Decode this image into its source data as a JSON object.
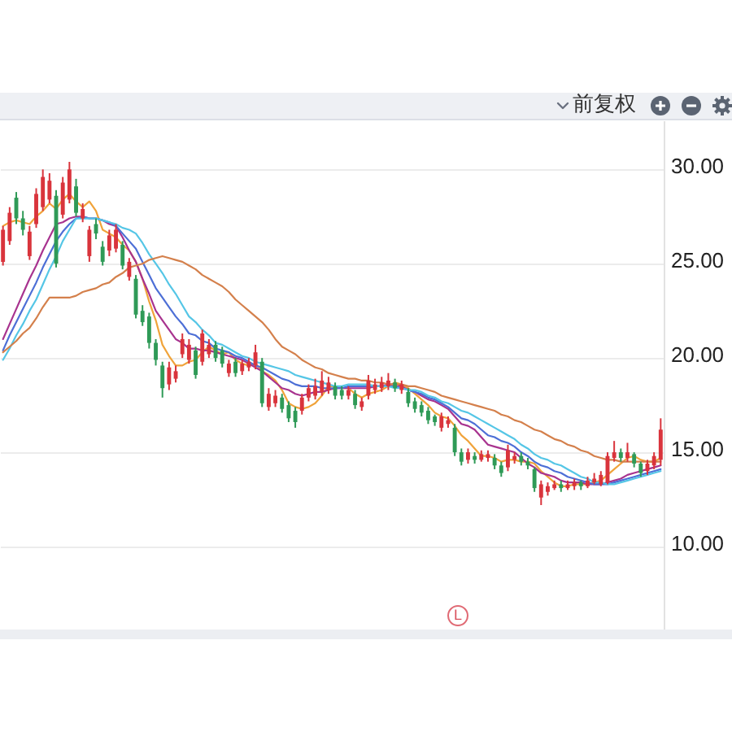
{
  "chart_data": {
    "type": "candlestick",
    "categories": [
      null,
      null,
      null,
      null,
      null,
      null,
      null,
      null,
      null,
      null,
      null,
      null,
      null,
      null,
      null,
      null,
      null,
      null,
      null,
      null,
      null,
      null,
      null,
      null,
      null,
      null,
      null,
      null,
      null,
      null,
      null,
      null,
      null,
      null,
      null,
      null,
      null,
      null,
      null,
      null,
      null,
      null,
      null,
      null,
      null,
      null,
      null,
      null,
      null,
      null,
      null,
      null,
      null,
      null,
      null,
      null,
      null,
      null,
      null,
      null,
      null,
      null,
      null,
      null,
      null,
      null,
      null,
      null,
      null,
      null,
      null,
      null,
      null,
      null,
      null,
      null,
      null,
      null,
      null,
      null,
      null,
      null,
      null,
      null,
      null,
      null,
      null,
      null,
      null,
      null,
      null,
      null,
      null,
      null,
      null,
      null,
      null,
      null,
      null,
      null
    ],
    "ohlc": [
      [
        25.1,
        27.0,
        24.9,
        26.8
      ],
      [
        26.2,
        28.0,
        26.0,
        27.7
      ],
      [
        28.5,
        28.8,
        27.1,
        27.4
      ],
      [
        27.4,
        27.8,
        26.5,
        26.8
      ],
      [
        25.4,
        27.0,
        25.2,
        26.7
      ],
      [
        27.1,
        29.0,
        26.9,
        28.7
      ],
      [
        28.0,
        30.0,
        27.8,
        29.6
      ],
      [
        28.4,
        29.8,
        28.2,
        29.4
      ],
      [
        28.6,
        28.9,
        24.8,
        25.0
      ],
      [
        27.6,
        29.6,
        27.4,
        29.3
      ],
      [
        28.4,
        30.4,
        28.2,
        30.0
      ],
      [
        29.1,
        29.5,
        27.5,
        27.7
      ],
      [
        27.4,
        28.2,
        27.2,
        27.9
      ],
      [
        25.4,
        27.0,
        25.1,
        26.8
      ],
      [
        27.1,
        27.4,
        26.3,
        26.6
      ],
      [
        25.9,
        26.2,
        24.9,
        25.1
      ],
      [
        25.7,
        26.8,
        25.4,
        26.5
      ],
      [
        25.8,
        27.1,
        25.6,
        26.8
      ],
      [
        26.0,
        26.2,
        24.7,
        24.9
      ],
      [
        24.3,
        25.3,
        24.1,
        25.1
      ],
      [
        24.2,
        24.4,
        22.1,
        22.3
      ],
      [
        22.5,
        22.8,
        21.7,
        21.9
      ],
      [
        22.2,
        22.4,
        20.5,
        20.8
      ],
      [
        20.8,
        21.0,
        19.6,
        19.9
      ],
      [
        19.6,
        19.8,
        17.9,
        18.4
      ],
      [
        18.6,
        19.8,
        18.3,
        19.5
      ],
      [
        18.9,
        19.6,
        18.7,
        19.3
      ],
      [
        20.2,
        21.3,
        20.0,
        21.0
      ],
      [
        19.9,
        21.0,
        19.7,
        20.7
      ],
      [
        20.4,
        20.6,
        18.9,
        19.1
      ],
      [
        19.8,
        21.5,
        19.6,
        21.3
      ],
      [
        20.2,
        21.0,
        20.0,
        20.7
      ],
      [
        20.7,
        20.9,
        19.8,
        20.0
      ],
      [
        20.4,
        20.6,
        19.5,
        19.7
      ],
      [
        19.2,
        19.9,
        19.0,
        19.7
      ],
      [
        19.8,
        20.0,
        19.0,
        19.2
      ],
      [
        19.3,
        19.9,
        19.1,
        19.7
      ],
      [
        19.5,
        20.0,
        19.3,
        19.8
      ],
      [
        19.6,
        20.7,
        19.4,
        20.3
      ],
      [
        19.8,
        20.0,
        17.4,
        17.6
      ],
      [
        17.4,
        18.4,
        17.2,
        18.1
      ],
      [
        17.6,
        18.3,
        17.4,
        18.0
      ],
      [
        17.9,
        18.1,
        17.1,
        17.3
      ],
      [
        17.5,
        17.7,
        16.6,
        16.8
      ],
      [
        17.2,
        17.4,
        16.3,
        16.6
      ],
      [
        17.2,
        18.1,
        17.0,
        17.9
      ],
      [
        17.9,
        18.6,
        17.7,
        18.4
      ],
      [
        18.0,
        18.9,
        17.8,
        18.5
      ],
      [
        18.2,
        19.3,
        18.0,
        18.8
      ],
      [
        18.3,
        19.0,
        18.1,
        18.7
      ],
      [
        18.5,
        18.7,
        17.8,
        18.0
      ],
      [
        18.3,
        18.5,
        17.8,
        18.0
      ],
      [
        18.0,
        18.5,
        17.8,
        18.3
      ],
      [
        18.1,
        18.3,
        17.3,
        17.5
      ],
      [
        17.4,
        17.9,
        17.2,
        17.7
      ],
      [
        18.0,
        19.1,
        17.8,
        18.8
      ],
      [
        18.3,
        18.9,
        18.1,
        18.6
      ],
      [
        18.4,
        19.0,
        18.2,
        18.7
      ],
      [
        18.5,
        19.2,
        18.3,
        18.8
      ],
      [
        18.7,
        18.9,
        18.2,
        18.4
      ],
      [
        18.3,
        18.8,
        18.1,
        18.6
      ],
      [
        18.2,
        18.4,
        17.4,
        17.6
      ],
      [
        17.7,
        17.9,
        17.1,
        17.3
      ],
      [
        17.5,
        17.7,
        16.9,
        17.1
      ],
      [
        17.2,
        17.4,
        16.5,
        16.7
      ],
      [
        16.9,
        17.0,
        16.4,
        16.6
      ],
      [
        16.3,
        17.1,
        16.1,
        16.9
      ],
      [
        16.5,
        16.9,
        16.3,
        16.7
      ],
      [
        16.3,
        16.5,
        14.8,
        15.0
      ],
      [
        15.0,
        15.2,
        14.3,
        14.5
      ],
      [
        14.6,
        15.2,
        14.4,
        15.0
      ],
      [
        14.8,
        15.0,
        14.4,
        14.6
      ],
      [
        14.6,
        15.1,
        14.5,
        14.9
      ],
      [
        14.7,
        15.1,
        14.5,
        14.9
      ],
      [
        14.7,
        14.9,
        14.1,
        14.3
      ],
      [
        14.3,
        14.5,
        13.7,
        13.9
      ],
      [
        14.2,
        15.4,
        14.0,
        15.1
      ],
      [
        14.6,
        15.0,
        14.4,
        14.8
      ],
      [
        14.8,
        15.0,
        14.3,
        14.5
      ],
      [
        14.5,
        14.7,
        14.1,
        14.3
      ],
      [
        14.1,
        14.2,
        12.9,
        13.1
      ],
      [
        12.6,
        13.5,
        12.2,
        13.3
      ],
      [
        12.9,
        13.4,
        12.7,
        13.2
      ],
      [
        13.1,
        13.5,
        13.0,
        13.3
      ],
      [
        13.3,
        13.5,
        12.9,
        13.1
      ],
      [
        13.1,
        13.5,
        13.0,
        13.3
      ],
      [
        13.2,
        13.6,
        13.0,
        13.4
      ],
      [
        13.4,
        13.5,
        13.0,
        13.2
      ],
      [
        13.2,
        13.7,
        13.1,
        13.5
      ],
      [
        13.4,
        13.9,
        13.3,
        13.6
      ],
      [
        13.3,
        14.0,
        13.2,
        13.8
      ],
      [
        13.4,
        15.0,
        13.3,
        14.8
      ],
      [
        14.7,
        15.6,
        14.5,
        15.0
      ],
      [
        15.0,
        15.2,
        14.5,
        14.7
      ],
      [
        14.7,
        15.5,
        14.5,
        15.0
      ],
      [
        14.9,
        15.0,
        14.2,
        14.4
      ],
      [
        14.4,
        14.5,
        13.7,
        13.9
      ],
      [
        14.0,
        14.6,
        13.8,
        14.4
      ],
      [
        14.3,
        15.0,
        14.1,
        14.8
      ],
      [
        14.6,
        16.8,
        14.3,
        16.2
      ]
    ],
    "colors": [
      "#d9343c",
      "#d9343c",
      "#2f9a57",
      "#2f9a57",
      "#d9343c",
      "#d9343c",
      "#d9343c",
      "#d9343c",
      "#2f9a57",
      "#d9343c",
      "#d9343c",
      "#2f9a57",
      "#d9343c",
      "#d9343c",
      "#2f9a57",
      "#2f9a57",
      "#d9343c",
      "#d9343c",
      "#2f9a57",
      "#d9343c",
      "#2f9a57",
      "#2f9a57",
      "#2f9a57",
      "#2f9a57",
      "#2f9a57",
      "#d9343c",
      "#d9343c",
      "#d9343c",
      "#d9343c",
      "#2f9a57",
      "#d9343c",
      "#d9343c",
      "#2f9a57",
      "#2f9a57",
      "#d9343c",
      "#2f9a57",
      "#d9343c",
      "#d9343c",
      "#d9343c",
      "#2f9a57",
      "#d9343c",
      "#d9343c",
      "#2f9a57",
      "#2f9a57",
      "#2f9a57",
      "#d9343c",
      "#d9343c",
      "#d9343c",
      "#d9343c",
      "#d9343c",
      "#2f9a57",
      "#2f9a57",
      "#d9343c",
      "#2f9a57",
      "#d9343c",
      "#d9343c",
      "#d9343c",
      "#d9343c",
      "#d9343c",
      "#2f9a57",
      "#d9343c",
      "#2f9a57",
      "#2f9a57",
      "#2f9a57",
      "#2f9a57",
      "#2f9a57",
      "#d9343c",
      "#d9343c",
      "#2f9a57",
      "#2f9a57",
      "#d9343c",
      "#2f9a57",
      "#d9343c",
      "#d9343c",
      "#2f9a57",
      "#2f9a57",
      "#d9343c",
      "#d9343c",
      "#2f9a57",
      "#2f9a57",
      "#2f9a57",
      "#d9343c",
      "#d9343c",
      "#d9343c",
      "#2f9a57",
      "#d9343c",
      "#d9343c",
      "#2f9a57",
      "#d9343c",
      "#d9343c",
      "#d9343c",
      "#d9343c",
      "#d9343c",
      "#2f9a57",
      "#d9343c",
      "#2f9a57",
      "#2f9a57",
      "#d9343c",
      "#d9343c",
      "#d9343c"
    ],
    "series": [
      {
        "type": "line",
        "color": "#f0a33a",
        "values": [
          27.0,
          27.2,
          27.3,
          27.2,
          27.1,
          27.5,
          27.8,
          28.2,
          27.9,
          28.4,
          28.7,
          28.3,
          28.0,
          28.3,
          27.8,
          26.8,
          26.6,
          26.4,
          26.0,
          25.7,
          25.1,
          24.2,
          23.0,
          22.0,
          20.7,
          20.1,
          19.6,
          19.6,
          19.8,
          19.9,
          20.3,
          20.6,
          20.4,
          20.2,
          20.3,
          19.9,
          19.7,
          19.6,
          19.7,
          19.3,
          19.1,
          18.8,
          18.3,
          17.6,
          17.4,
          17.3,
          17.4,
          17.6,
          18.0,
          18.5,
          18.5,
          18.4,
          18.4,
          18.1,
          17.9,
          18.1,
          18.2,
          18.3,
          18.5,
          18.7,
          18.6,
          18.4,
          18.1,
          17.8,
          17.5,
          17.1,
          16.9,
          16.8,
          16.4,
          15.9,
          15.6,
          15.2,
          14.8,
          14.8,
          14.7,
          14.5,
          14.6,
          14.6,
          14.5,
          14.5,
          14.4,
          14.0,
          13.7,
          13.4,
          13.2,
          13.2,
          13.3,
          13.3,
          13.3,
          13.4,
          13.5,
          13.8,
          14.1,
          14.4,
          14.7,
          14.8,
          14.6,
          14.5,
          14.5,
          14.7
        ]
      },
      {
        "type": "line",
        "color": "#a8338f",
        "values": [
          21.0,
          21.8,
          22.6,
          23.4,
          24.2,
          24.9,
          25.7,
          26.4,
          27.1,
          27.2,
          27.4,
          27.5,
          27.5,
          27.4,
          27.4,
          27.3,
          27.1,
          27.0,
          26.4,
          25.7,
          25.1,
          24.2,
          23.4,
          22.5,
          22.0,
          21.5,
          21.0,
          20.8,
          20.5,
          20.5,
          20.4,
          20.4,
          20.3,
          20.2,
          20.1,
          20.0,
          19.9,
          19.7,
          19.5,
          19.3,
          19.0,
          18.7,
          18.4,
          18.3,
          18.1,
          18.0,
          18.1,
          18.2,
          18.2,
          18.3,
          18.4,
          18.4,
          18.4,
          18.4,
          18.4,
          18.4,
          18.5,
          18.5,
          18.6,
          18.6,
          18.5,
          18.3,
          18.2,
          18.0,
          17.8,
          17.7,
          17.5,
          17.3,
          16.9,
          16.5,
          16.4,
          16.2,
          15.8,
          15.4,
          15.3,
          15.2,
          15.1,
          15.0,
          14.7,
          14.4,
          14.2,
          13.9,
          13.8,
          13.7,
          13.5,
          13.4,
          13.4,
          13.4,
          13.3,
          13.3,
          13.3,
          13.4,
          13.5,
          13.6,
          13.8,
          13.9,
          14.0,
          14.1,
          14.2,
          14.3
        ]
      },
      {
        "type": "line",
        "color": "#4d6fd6",
        "values": [
          20.4,
          21.2,
          21.9,
          22.6,
          23.3,
          24.0,
          24.8,
          25.5,
          26.2,
          26.7,
          27.1,
          27.4,
          27.5,
          27.4,
          27.4,
          27.3,
          27.2,
          27.0,
          26.6,
          26.2,
          25.8,
          25.1,
          24.4,
          23.7,
          23.2,
          22.7,
          22.2,
          21.8,
          21.3,
          21.2,
          20.9,
          20.8,
          20.5,
          20.4,
          20.3,
          20.1,
          20.0,
          19.8,
          19.6,
          19.5,
          19.3,
          19.1,
          18.9,
          18.8,
          18.6,
          18.5,
          18.5,
          18.5,
          18.4,
          18.4,
          18.4,
          18.4,
          18.5,
          18.5,
          18.5,
          18.5,
          18.5,
          18.5,
          18.5,
          18.5,
          18.4,
          18.3,
          18.2,
          18.1,
          17.9,
          17.8,
          17.6,
          17.4,
          17.1,
          16.8,
          16.7,
          16.5,
          16.2,
          15.9,
          15.8,
          15.6,
          15.5,
          15.3,
          15.0,
          14.8,
          14.5,
          14.3,
          14.2,
          14.0,
          13.9,
          13.7,
          13.6,
          13.5,
          13.4,
          13.3,
          13.3,
          13.3,
          13.4,
          13.5,
          13.6,
          13.7,
          13.8,
          13.9,
          14.0,
          14.1
        ]
      },
      {
        "type": "line",
        "color": "#55c6e6",
        "values": [
          19.9,
          20.5,
          21.2,
          21.8,
          22.5,
          23.1,
          23.9,
          24.7,
          25.4,
          26.2,
          26.8,
          27.4,
          27.4,
          27.4,
          27.4,
          27.3,
          27.2,
          27.1,
          26.9,
          26.8,
          26.6,
          26.1,
          25.5,
          25.0,
          24.5,
          23.9,
          23.4,
          22.8,
          22.2,
          21.9,
          21.5,
          21.2,
          20.8,
          20.7,
          20.5,
          20.3,
          20.1,
          20.0,
          19.8,
          19.7,
          19.6,
          19.5,
          19.4,
          19.3,
          19.1,
          19.0,
          18.9,
          18.8,
          18.7,
          18.6,
          18.5,
          18.5,
          18.6,
          18.6,
          18.6,
          18.6,
          18.5,
          18.5,
          18.5,
          18.4,
          18.4,
          18.3,
          18.3,
          18.2,
          18.0,
          17.9,
          17.7,
          17.6,
          17.4,
          17.2,
          17.1,
          16.9,
          16.7,
          16.5,
          16.3,
          16.1,
          15.9,
          15.7,
          15.4,
          15.2,
          14.9,
          14.7,
          14.6,
          14.4,
          14.3,
          14.1,
          13.9,
          13.7,
          13.6,
          13.4,
          13.4,
          13.3,
          13.3,
          13.4,
          13.5,
          13.6,
          13.7,
          13.8,
          13.9,
          14.0
        ]
      },
      {
        "type": "line",
        "color": "#d4804c",
        "values": [
          20.3,
          20.6,
          20.9,
          21.3,
          21.6,
          22.1,
          22.7,
          23.2,
          23.2,
          23.2,
          23.2,
          23.3,
          23.5,
          23.6,
          23.7,
          23.9,
          24.0,
          24.3,
          24.5,
          24.8,
          24.9,
          25.0,
          25.2,
          25.3,
          25.4,
          25.3,
          25.2,
          25.1,
          24.9,
          24.7,
          24.4,
          24.2,
          24.0,
          23.8,
          23.5,
          23.1,
          22.8,
          22.5,
          22.2,
          21.9,
          21.5,
          21.0,
          20.6,
          20.4,
          20.2,
          19.9,
          19.7,
          19.5,
          19.4,
          19.2,
          19.1,
          19.0,
          18.9,
          18.9,
          18.8,
          18.8,
          18.7,
          18.7,
          18.6,
          18.6,
          18.6,
          18.5,
          18.5,
          18.4,
          18.3,
          18.2,
          18.0,
          17.9,
          17.8,
          17.7,
          17.6,
          17.5,
          17.4,
          17.3,
          17.2,
          17.0,
          16.9,
          16.7,
          16.6,
          16.4,
          16.2,
          16.1,
          15.9,
          15.7,
          15.6,
          15.4,
          15.3,
          15.1,
          15.0,
          14.8,
          14.7,
          14.6,
          14.6,
          14.5,
          14.5,
          14.5,
          14.5,
          14.5,
          14.5,
          14.5
        ]
      }
    ],
    "ylim": [
      5.6,
      32.6
    ],
    "yticks": [
      {
        "value": 10,
        "label": "10.00"
      },
      {
        "value": 15,
        "label": "15.00"
      },
      {
        "value": 20,
        "label": "20.00"
      },
      {
        "value": 25,
        "label": "25.00"
      },
      {
        "value": 30,
        "label": "30.00"
      }
    ],
    "tick_labels": "y",
    "grid": "y",
    "annotations": [
      "前复权",
      "L"
    ]
  }
}
